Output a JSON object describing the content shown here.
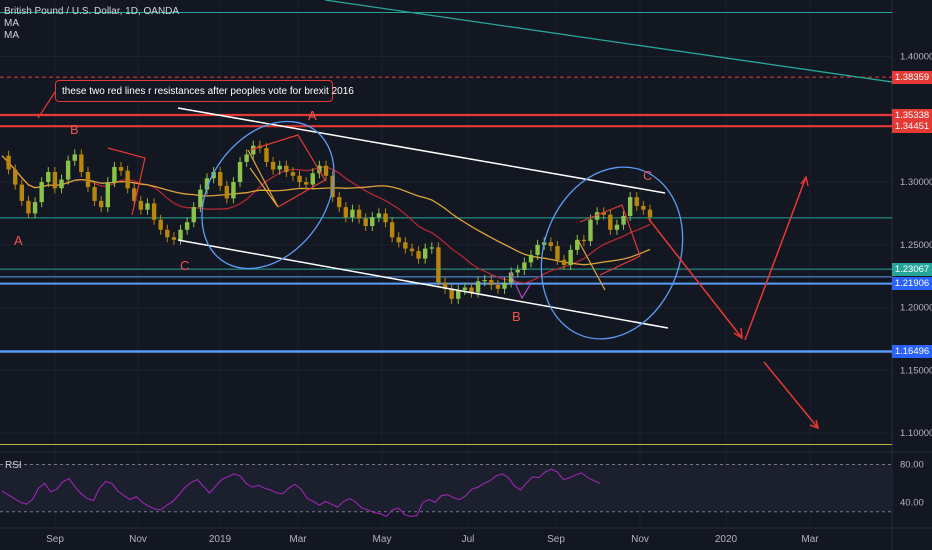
{
  "legend": {
    "symbol": "British Pound / U.S. Dollar, 1D, OANDA",
    "ma1": "MA",
    "ma2": "MA"
  },
  "rsi_label": "RSI",
  "annotation": {
    "note": "these two red lines r resistances after peoples vote for brexit 2016",
    "wave_labels": [
      {
        "label": "A",
        "color": "#ef5350"
      },
      {
        "label": "B",
        "color": "#ef5350"
      },
      {
        "label": "C",
        "color": "#ef5350"
      },
      {
        "label": "A",
        "color": "#ef5350"
      },
      {
        "label": "B",
        "color": "#ef5350"
      },
      {
        "label": "C",
        "color": "#ef5350"
      }
    ]
  },
  "colors": {
    "background": "#131722",
    "resistance": "#e53935",
    "support": "#5b9cf6",
    "green_level": "#26a69a",
    "yellow_level": "#b8b838",
    "ma_orange": "#e0a33a",
    "ma_red": "#b22833",
    "channel": "#ffffff",
    "ellipse": "#5b9cf6",
    "rsi": "#9c27b0",
    "trend_teal": "#26a69a"
  },
  "chart_data": {
    "type": "line",
    "title": "British Pound / U.S. Dollar, 1D, OANDA",
    "xlabel": "",
    "ylabel": "",
    "x_tick_labels": [
      "Sep",
      "Nov",
      "2019",
      "Mar",
      "May",
      "Jul",
      "Sep",
      "Nov",
      "2020",
      "Mar"
    ],
    "y_tick_labels": [
      1.4,
      1.3,
      1.25,
      1.2,
      1.15,
      1.1
    ],
    "ylim": [
      1.085,
      1.445
    ],
    "price_tags": [
      {
        "value": "1.38359",
        "color": "#e53935"
      },
      {
        "value": "1.35338",
        "color": "#e53935"
      },
      {
        "value": "1.34451",
        "color": "#e53935"
      },
      {
        "value": "1.23067",
        "color": "#26a69a"
      },
      {
        "value": "1.21906",
        "color": "#2962ff"
      },
      {
        "value": "1.16496",
        "color": "#2962ff"
      }
    ],
    "horizontal_levels": [
      1.435,
      1.3534,
      1.3445,
      1.2715,
      1.2307,
      1.2245,
      1.2191,
      1.165,
      1.091
    ],
    "series": [
      {
        "values": [
          1.321,
          1.31,
          1.298,
          1.285,
          1.275,
          1.284,
          1.3,
          1.308,
          1.295,
          1.302,
          1.317,
          1.322,
          1.308,
          1.296,
          1.285,
          1.28,
          1.3,
          1.312,
          1.309,
          1.295,
          1.285,
          1.278,
          1.283,
          1.27,
          1.262,
          1.256,
          1.254,
          1.262,
          1.268,
          1.28,
          1.294,
          1.303,
          1.308,
          1.297,
          1.287,
          1.3,
          1.316,
          1.322,
          1.329,
          1.327,
          1.316,
          1.31,
          1.313,
          1.308,
          1.305,
          1.3,
          1.298,
          1.307,
          1.313,
          1.305,
          1.288,
          1.28,
          1.272,
          1.278,
          1.271,
          1.265,
          1.272,
          1.275,
          1.268,
          1.256,
          1.252,
          1.247,
          1.245,
          1.239,
          1.247,
          1.248,
          1.22,
          1.215,
          1.207,
          1.214,
          1.216,
          1.212,
          1.221,
          1.222,
          1.218,
          1.215,
          1.22,
          1.228,
          1.23,
          1.236,
          1.242,
          1.25,
          1.252,
          1.249,
          1.238,
          1.234,
          1.246,
          1.254,
          1.253,
          1.27,
          1.276,
          1.274,
          1.262,
          1.266,
          1.273,
          1.288,
          1.281,
          1.278,
          1.272
        ]
      }
    ],
    "rsi": {
      "levels": [
        80.0,
        40.0
      ],
      "ylim": [
        15,
        90
      ],
      "values": [
        52,
        48,
        44,
        40,
        38,
        43,
        55,
        60,
        51,
        54,
        62,
        65,
        56,
        49,
        44,
        42,
        55,
        62,
        60,
        52,
        47,
        43,
        46,
        40,
        36,
        33,
        32,
        37,
        41,
        48,
        56,
        61,
        64,
        57,
        50,
        57,
        64,
        67,
        70,
        68,
        60,
        56,
        58,
        55,
        53,
        50,
        49,
        55,
        59,
        54,
        44,
        41,
        37,
        41,
        38,
        35,
        41,
        44,
        40,
        34,
        32,
        29,
        28,
        25,
        32,
        34,
        27,
        25,
        26,
        40,
        43,
        40,
        47,
        48,
        45,
        43,
        47,
        54,
        56,
        60,
        63,
        68,
        70,
        66,
        57,
        53,
        61,
        67,
        66,
        72,
        75,
        72,
        64,
        66,
        69,
        71,
        66,
        63,
        60
      ]
    }
  }
}
